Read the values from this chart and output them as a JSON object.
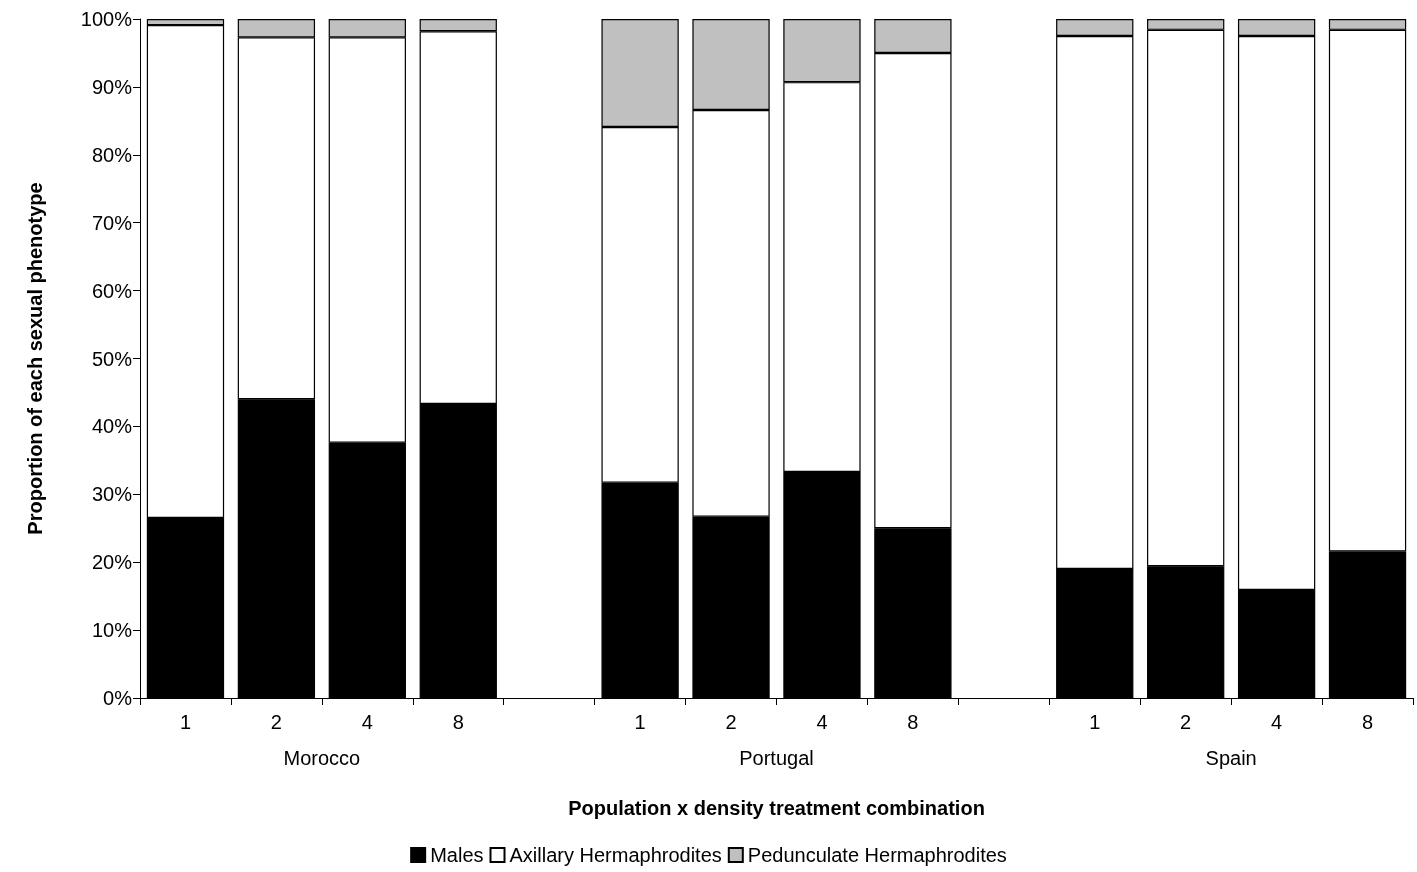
{
  "chart_data": {
    "type": "bar",
    "stacked": true,
    "xlabel": "Population x density treatment combination",
    "ylabel": "Proportion of each sexual phenotype",
    "categories": [
      "1",
      "2",
      "4",
      "8",
      null,
      "1",
      "2",
      "4",
      "8",
      null,
      "1",
      "2",
      "4",
      "8"
    ],
    "series": [
      {
        "name": "Males",
        "color": "#000000",
        "values": [
          26.5,
          44.0,
          37.6,
          43.3,
          null,
          31.7,
          26.7,
          33.3,
          25.0,
          null,
          19.0,
          19.4,
          15.9,
          21.6
        ]
      },
      {
        "name": "Axillary Hermaphrodites",
        "color": "#ffffff",
        "values": [
          72.6,
          53.3,
          59.7,
          54.9,
          null,
          52.4,
          59.9,
          57.4,
          70.0,
          null,
          78.5,
          79.0,
          81.6,
          76.8
        ]
      },
      {
        "name": "Pedunculate Hermaphrodites",
        "color": "#c0c0c0",
        "values": [
          0.9,
          2.7,
          2.7,
          1.8,
          null,
          15.9,
          13.4,
          9.3,
          5.0,
          null,
          2.5,
          1.6,
          2.5,
          1.6
        ]
      }
    ],
    "ylim": [
      0,
      100
    ],
    "yticks": [
      {
        "value": 0,
        "label": "0%"
      },
      {
        "value": 10,
        "label": "10%"
      },
      {
        "value": 20,
        "label": "20%"
      },
      {
        "value": 30,
        "label": "30%"
      },
      {
        "value": 40,
        "label": "40%"
      },
      {
        "value": 50,
        "label": "50%"
      },
      {
        "value": 60,
        "label": "60%"
      },
      {
        "value": 70,
        "label": "70%"
      },
      {
        "value": 80,
        "label": "80%"
      },
      {
        "value": 90,
        "label": "90%"
      },
      {
        "value": 100,
        "label": "100%"
      }
    ],
    "annotations": [
      "Morocco",
      "Portugal",
      "Spain"
    ],
    "grid": false,
    "legend": "bottom"
  }
}
